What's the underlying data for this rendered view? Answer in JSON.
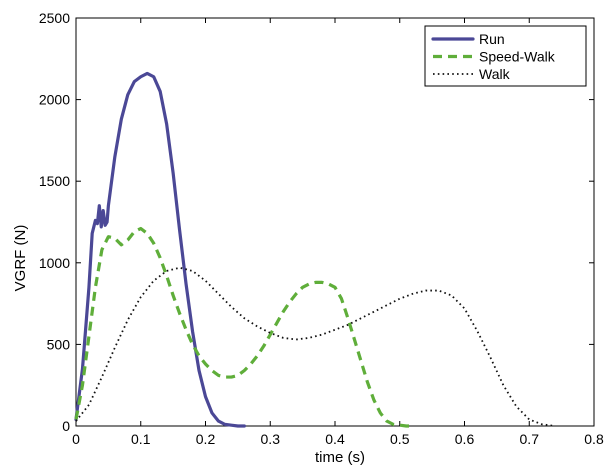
{
  "chart_data": {
    "type": "line",
    "title": "",
    "xlabel": "time (s)",
    "ylabel": "VGRF (N)",
    "xlim": [
      0,
      0.8
    ],
    "ylim": [
      0,
      2500
    ],
    "xticks": [
      0,
      0.1,
      0.2,
      0.3,
      0.4,
      0.5,
      0.6,
      0.7,
      0.8
    ],
    "xtick_labels": [
      "0",
      "0.1",
      "0.2",
      "0.3",
      "0.4",
      "0.5",
      "0.6",
      "0.7",
      "0.8"
    ],
    "yticks": [
      0,
      500,
      1000,
      1500,
      2000,
      2500
    ],
    "ytick_labels": [
      "0",
      "500",
      "1000",
      "1500",
      "2000",
      "2500"
    ],
    "grid": false,
    "legend_position": "top-right",
    "series": [
      {
        "name": "Run",
        "color": "#4b4896",
        "style": "solid",
        "x": [
          0,
          0.01,
          0.02,
          0.025,
          0.03,
          0.033,
          0.036,
          0.039,
          0.042,
          0.045,
          0.048,
          0.05,
          0.055,
          0.06,
          0.07,
          0.08,
          0.09,
          0.1,
          0.11,
          0.12,
          0.13,
          0.14,
          0.15,
          0.16,
          0.17,
          0.18,
          0.19,
          0.2,
          0.21,
          0.22,
          0.23,
          0.24,
          0.25,
          0.26
        ],
        "y": [
          40,
          350,
          850,
          1180,
          1260,
          1240,
          1350,
          1220,
          1320,
          1230,
          1250,
          1350,
          1500,
          1650,
          1880,
          2030,
          2110,
          2140,
          2160,
          2140,
          2050,
          1850,
          1550,
          1200,
          870,
          580,
          340,
          180,
          80,
          30,
          10,
          5,
          0,
          0
        ]
      },
      {
        "name": "Speed-Walk",
        "color": "#5fae3a",
        "style": "dashed",
        "x": [
          0,
          0.01,
          0.02,
          0.03,
          0.04,
          0.05,
          0.06,
          0.07,
          0.08,
          0.09,
          0.1,
          0.11,
          0.12,
          0.13,
          0.14,
          0.15,
          0.16,
          0.17,
          0.18,
          0.19,
          0.2,
          0.21,
          0.22,
          0.23,
          0.24,
          0.25,
          0.26,
          0.27,
          0.28,
          0.29,
          0.3,
          0.31,
          0.32,
          0.33,
          0.34,
          0.35,
          0.36,
          0.37,
          0.38,
          0.39,
          0.4,
          0.41,
          0.42,
          0.43,
          0.44,
          0.45,
          0.46,
          0.47,
          0.48,
          0.49,
          0.5,
          0.51,
          0.52
        ],
        "y": [
          40,
          250,
          550,
          850,
          1080,
          1160,
          1150,
          1110,
          1140,
          1190,
          1210,
          1180,
          1120,
          1030,
          920,
          800,
          690,
          590,
          500,
          430,
          380,
          340,
          310,
          300,
          300,
          310,
          340,
          380,
          430,
          490,
          560,
          630,
          700,
          760,
          810,
          850,
          870,
          880,
          880,
          870,
          850,
          780,
          660,
          530,
          400,
          270,
          160,
          80,
          30,
          10,
          5,
          0,
          0
        ]
      },
      {
        "name": "Walk",
        "color": "#111111",
        "style": "dotted",
        "x": [
          0,
          0.02,
          0.04,
          0.06,
          0.08,
          0.1,
          0.12,
          0.14,
          0.16,
          0.18,
          0.2,
          0.22,
          0.24,
          0.26,
          0.28,
          0.3,
          0.32,
          0.34,
          0.36,
          0.38,
          0.4,
          0.42,
          0.44,
          0.46,
          0.48,
          0.5,
          0.52,
          0.54,
          0.56,
          0.58,
          0.6,
          0.62,
          0.64,
          0.66,
          0.68,
          0.7,
          0.72,
          0.74
        ],
        "y": [
          30,
          130,
          300,
          480,
          650,
          790,
          890,
          950,
          970,
          950,
          890,
          810,
          730,
          660,
          610,
          570,
          540,
          530,
          540,
          560,
          590,
          620,
          660,
          700,
          740,
          780,
          810,
          830,
          830,
          800,
          720,
          580,
          420,
          250,
          120,
          40,
          10,
          0
        ]
      }
    ]
  }
}
